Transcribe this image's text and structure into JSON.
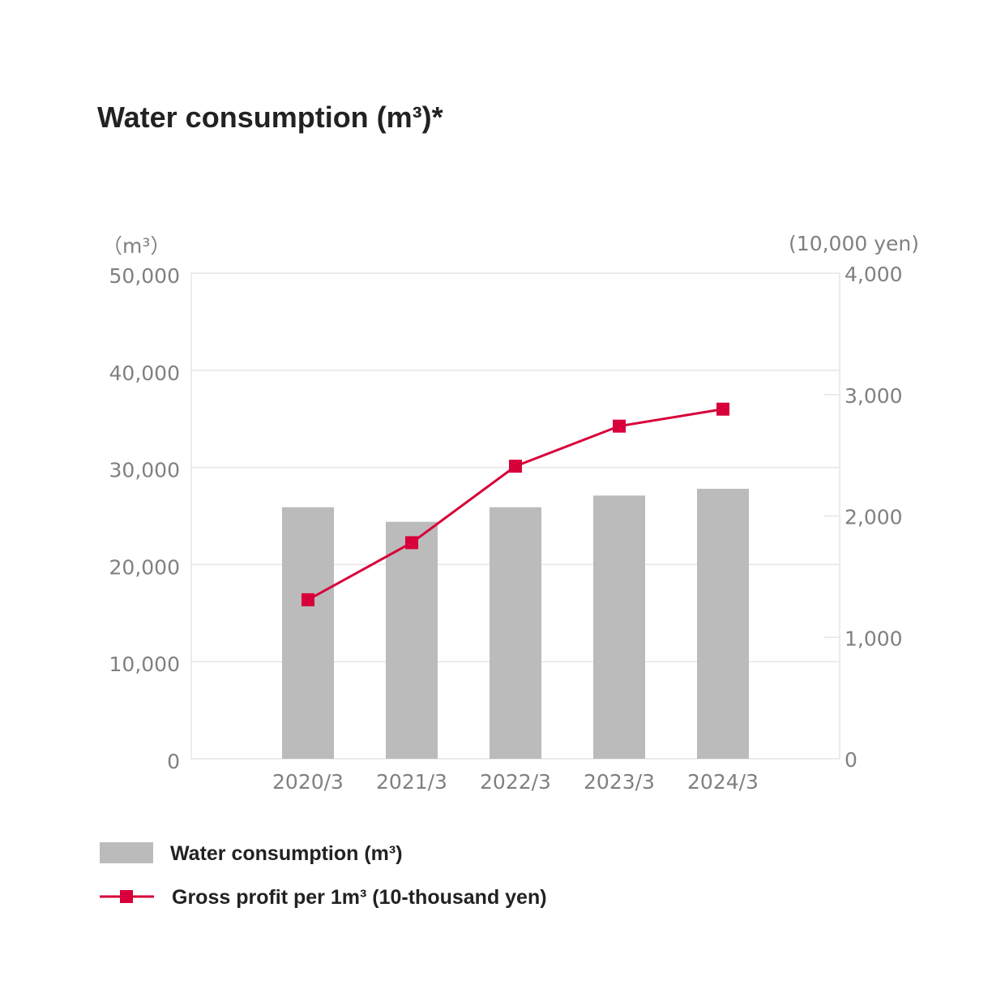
{
  "title": "Water consumption (m³)*",
  "chart_data": {
    "type": "bar",
    "categories": [
      "2020/3",
      "2021/3",
      "2022/3",
      "2023/3",
      "2024/3"
    ],
    "series": [
      {
        "name": "Water consumption (m³)",
        "type": "bar",
        "axis": "left",
        "values": [
          25900,
          24400,
          25900,
          27100,
          27800
        ],
        "color": "#bbbbbb"
      },
      {
        "name": "Gross profit per 1m³ (10-thousand yen)",
        "type": "line",
        "axis": "right",
        "values": [
          1310,
          1780,
          2410,
          2740,
          2880
        ],
        "color": "#d7003a"
      }
    ],
    "left_axis": {
      "unit": "（m³）",
      "range": [
        0,
        50000
      ],
      "ticks": [
        "0",
        "10,000",
        "20,000",
        "30,000",
        "40,000",
        "50,000"
      ]
    },
    "right_axis": {
      "unit": "(10,000 yen)",
      "range": [
        0,
        4000
      ],
      "ticks": [
        "0",
        "1,000",
        "2,000",
        "3,000",
        "4,000"
      ]
    },
    "grid": true,
    "legend_position": "bottom-left"
  }
}
